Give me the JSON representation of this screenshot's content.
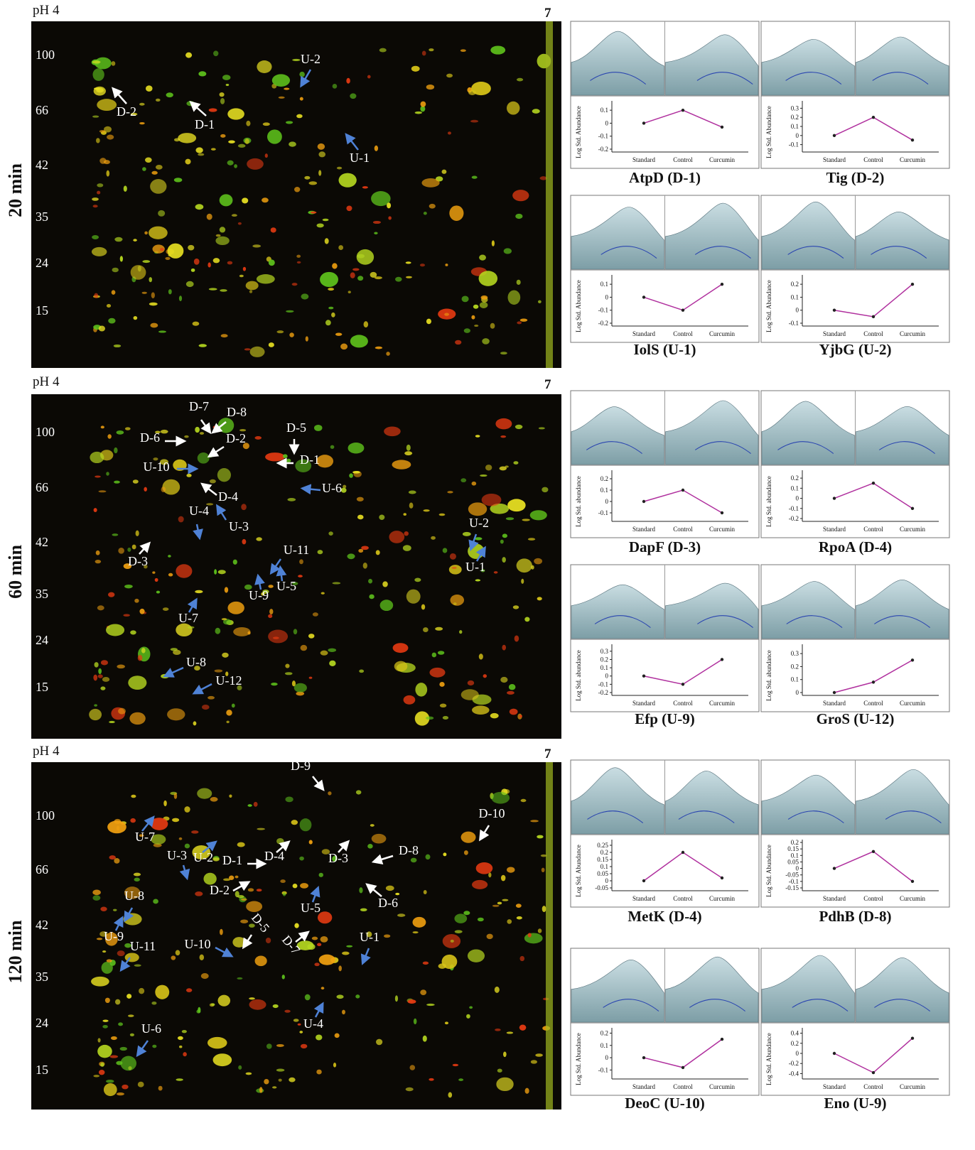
{
  "gels": [
    {
      "time": "20 min",
      "ph_left": "pH 4",
      "ph_right": "7",
      "mw": [
        "100",
        "66",
        "42",
        "35",
        "24",
        "15"
      ],
      "spots": {
        "down": [
          "D-1",
          "D-2"
        ],
        "up": [
          "U-1",
          "U-2"
        ]
      }
    },
    {
      "time": "60 min",
      "ph_left": "pH 4",
      "ph_right": "7",
      "mw": [
        "100",
        "66",
        "42",
        "35",
        "24",
        "15"
      ],
      "spots": {
        "down": [
          "D-7",
          "D-8",
          "D-6",
          "D-2",
          "D-5",
          "D-1",
          "D-4",
          "D-3"
        ],
        "up": [
          "U-10",
          "U-6",
          "U-4",
          "U-3",
          "U-11",
          "U-9",
          "U-5",
          "U-7",
          "U-2",
          "U-1",
          "U-8",
          "U-12"
        ]
      }
    },
    {
      "time": "120 min",
      "ph_left": "pH 4",
      "ph_right": "7",
      "mw": [
        "100",
        "66",
        "42",
        "35",
        "24",
        "15"
      ],
      "spots": {
        "down": [
          "D-9",
          "D-10",
          "D-1",
          "D-4",
          "D-3",
          "D-8",
          "D-2",
          "D-6",
          "D-5",
          "D-7"
        ],
        "up": [
          "U-7",
          "U-3",
          "U-2",
          "U-8",
          "U-5",
          "U-9",
          "U-11",
          "U-10",
          "U-1",
          "U-4",
          "U-6"
        ]
      }
    }
  ],
  "arrow_colors": {
    "down": "#ffffff",
    "up": "#4f82d6"
  },
  "trend_categories": [
    "Standard",
    "Control",
    "Curcumin"
  ],
  "mean_color": "#b0309e",
  "cards": [
    {
      "title": "AtpD (D-1)",
      "ylabel": "Log Std. Abundance",
      "ylim": [
        -0.2,
        0.15
      ],
      "yticks": [
        0.1,
        0,
        -0.1,
        -0.2
      ],
      "mean": [
        0,
        0.1,
        -0.03
      ]
    },
    {
      "title": "Tig (D-2)",
      "ylabel": "Log Std. Abundance",
      "ylim": [
        -0.15,
        0.35
      ],
      "yticks": [
        0.3,
        0.2,
        0.1,
        0,
        -0.1
      ],
      "mean": [
        0,
        0.2,
        -0.05
      ]
    },
    {
      "title": "IolS (U-1)",
      "ylabel": "Log Std. Abundance",
      "ylim": [
        -0.2,
        0.15
      ],
      "yticks": [
        0.1,
        0,
        -0.1,
        -0.2
      ],
      "mean": [
        0,
        -0.1,
        0.1
      ]
    },
    {
      "title": "YjbG (U-2)",
      "ylabel": "Log Std. Abundance",
      "ylim": [
        -0.1,
        0.25
      ],
      "yticks": [
        0.2,
        0.1,
        0,
        -0.1
      ],
      "mean": [
        0,
        -0.05,
        0.2
      ]
    },
    {
      "title": "DapF (D-3)",
      "ylabel": "Log Std. abundance",
      "ylim": [
        -0.15,
        0.25
      ],
      "yticks": [
        0.2,
        0.1,
        0,
        -0.1
      ],
      "mean": [
        0,
        0.1,
        -0.1
      ]
    },
    {
      "title": "RpoA (D-4)",
      "ylabel": "Log Std. abundance",
      "ylim": [
        -0.2,
        0.25
      ],
      "yticks": [
        0.2,
        0.1,
        0,
        -0.1,
        -0.2
      ],
      "mean": [
        0,
        0.15,
        -0.1
      ]
    },
    {
      "title": "Efp (U-9)",
      "ylabel": "Log Std. abundance",
      "ylim": [
        -0.2,
        0.35
      ],
      "yticks": [
        0.3,
        0.2,
        0.1,
        0,
        -0.1,
        -0.2
      ],
      "mean": [
        0,
        -0.1,
        0.2
      ]
    },
    {
      "title": "GroS (U-12)",
      "ylabel": "Log Std. abundance",
      "ylim": [
        0,
        0.35
      ],
      "yticks": [
        0.3,
        0.2,
        0.1,
        0
      ],
      "mean": [
        0,
        0.08,
        0.25
      ]
    },
    {
      "title": "MetK (D-4)",
      "ylabel": "Log Std. Abundance",
      "ylim": [
        -0.05,
        0.27
      ],
      "yticks": [
        0.25,
        0.2,
        0.15,
        0.1,
        0.05,
        0,
        -0.05
      ],
      "mean": [
        0,
        0.2,
        0.02
      ]
    },
    {
      "title": "PdhB (D-8)",
      "ylabel": "Log Std. Abundance",
      "ylim": [
        -0.15,
        0.2
      ],
      "yticks": [
        0.2,
        0.15,
        0.1,
        0.05,
        0,
        -0.05,
        -0.1,
        -0.15
      ],
      "mean": [
        0,
        0.13,
        -0.1
      ]
    },
    {
      "title": "DeoC (U-10)",
      "ylabel": "Log Std. Abundance",
      "ylim": [
        -0.15,
        0.22
      ],
      "yticks": [
        0.2,
        0.1,
        0,
        -0.1
      ],
      "mean": [
        0,
        -0.08,
        0.15
      ]
    },
    {
      "title": "Eno (U-9)",
      "ylabel": "Log Std. Abundance",
      "ylim": [
        -0.45,
        0.45
      ],
      "yticks": [
        0.4,
        0.2,
        0,
        -0.2,
        -0.4
      ],
      "mean": [
        0,
        -0.38,
        0.3
      ]
    }
  ]
}
